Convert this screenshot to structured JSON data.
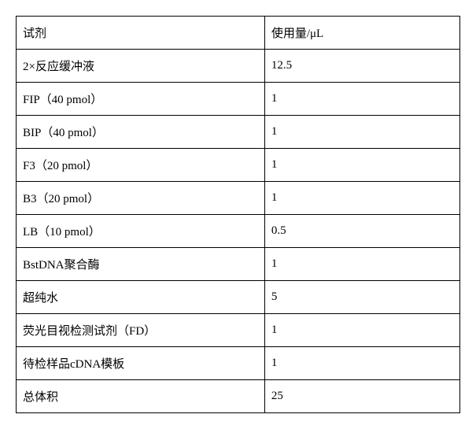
{
  "table": {
    "columns": [
      "试剂",
      "使用量/μL"
    ],
    "rows": [
      [
        "2×反应缓冲液",
        "12.5"
      ],
      [
        "FIP（40 pmol）",
        "1"
      ],
      [
        "BIP（40 pmol）",
        "1"
      ],
      [
        "F3（20 pmol）",
        "1"
      ],
      [
        "B3（20 pmol）",
        "1"
      ],
      [
        "LB（10 pmol）",
        "0.5"
      ],
      [
        "BstDNA聚合酶",
        "1"
      ],
      [
        "超纯水",
        "5"
      ],
      [
        "荧光目视检测试剂（FD）",
        "1"
      ],
      [
        "待检样品cDNA模板",
        "1"
      ],
      [
        "总体积",
        "25"
      ]
    ],
    "border_color": "#000000",
    "background_color": "#ffffff",
    "text_color": "#000000",
    "font_size": 15,
    "cell_padding": "10px 8px",
    "col_widths": [
      "56%",
      "44%"
    ]
  }
}
